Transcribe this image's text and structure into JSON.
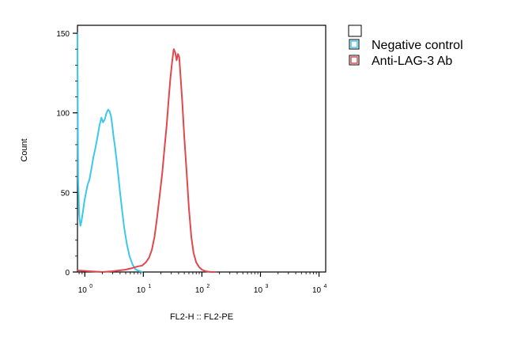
{
  "chart_data": {
    "type": "line",
    "title": "",
    "xlabel": "FL2-H :: FL2-PE",
    "ylabel": "Count",
    "xscale": "log",
    "xlim": [
      0.75,
      13000
    ],
    "ylim": [
      0,
      155
    ],
    "x_ticks": [
      {
        "base": "10",
        "exp": "0",
        "value": 1
      },
      {
        "base": "10",
        "exp": "1",
        "value": 10
      },
      {
        "base": "10",
        "exp": "2",
        "value": 100
      },
      {
        "base": "10",
        "exp": "3",
        "value": 1000
      },
      {
        "base": "10",
        "exp": "4",
        "value": 10000
      }
    ],
    "y_ticks": [
      {
        "label": "0",
        "value": 0
      },
      {
        "label": "50",
        "value": 50
      },
      {
        "label": "100",
        "value": 100
      },
      {
        "label": "150",
        "value": 150
      }
    ],
    "grid": false,
    "legend_position": "top-right outside",
    "series": [
      {
        "name": "Negative control",
        "color": "#3cc8ec",
        "points": [
          [
            0.75,
            150
          ],
          [
            0.76,
            100
          ],
          [
            0.77,
            60
          ],
          [
            0.8,
            36
          ],
          [
            0.84,
            29
          ],
          [
            0.88,
            32
          ],
          [
            0.93,
            38
          ],
          [
            0.98,
            44
          ],
          [
            1.05,
            50
          ],
          [
            1.12,
            55
          ],
          [
            1.2,
            58
          ],
          [
            1.3,
            65
          ],
          [
            1.4,
            72
          ],
          [
            1.52,
            78
          ],
          [
            1.65,
            85
          ],
          [
            1.78,
            92
          ],
          [
            1.92,
            97
          ],
          [
            2.05,
            94
          ],
          [
            2.2,
            96
          ],
          [
            2.35,
            100
          ],
          [
            2.5,
            102
          ],
          [
            2.65,
            101
          ],
          [
            2.8,
            98
          ],
          [
            2.95,
            92
          ],
          [
            3.1,
            85
          ],
          [
            3.3,
            78
          ],
          [
            3.5,
            70
          ],
          [
            3.75,
            60
          ],
          [
            4.0,
            50
          ],
          [
            4.3,
            40
          ],
          [
            4.7,
            28
          ],
          [
            5.2,
            18
          ],
          [
            5.8,
            10
          ],
          [
            6.5,
            5
          ],
          [
            7.2,
            2
          ],
          [
            8.0,
            1
          ],
          [
            9.5,
            0
          ]
        ]
      },
      {
        "name": "Anti-LAG-3 Ab",
        "color": "#e2474e",
        "points": [
          [
            0.75,
            1
          ],
          [
            1.2,
            0.5
          ],
          [
            2.0,
            0
          ],
          [
            3.0,
            0.5
          ],
          [
            5.0,
            1.5
          ],
          [
            6.5,
            2.5
          ],
          [
            8.0,
            3.5
          ],
          [
            9.5,
            4
          ],
          [
            11,
            6
          ],
          [
            12.5,
            9
          ],
          [
            14,
            14
          ],
          [
            15.5,
            22
          ],
          [
            17,
            33
          ],
          [
            19,
            48
          ],
          [
            21,
            62
          ],
          [
            23,
            78
          ],
          [
            25,
            92
          ],
          [
            27,
            108
          ],
          [
            29,
            122
          ],
          [
            31,
            132
          ],
          [
            33,
            140
          ],
          [
            35,
            138
          ],
          [
            37,
            133
          ],
          [
            39,
            137
          ],
          [
            41,
            135
          ],
          [
            43,
            124
          ],
          [
            46,
            108
          ],
          [
            50,
            85
          ],
          [
            55,
            62
          ],
          [
            60,
            40
          ],
          [
            66,
            22
          ],
          [
            72,
            12
          ],
          [
            80,
            6
          ],
          [
            90,
            3
          ],
          [
            100,
            1.5
          ],
          [
            115,
            0.5
          ],
          [
            140,
            0
          ],
          [
            170,
            0
          ]
        ]
      }
    ]
  }
}
